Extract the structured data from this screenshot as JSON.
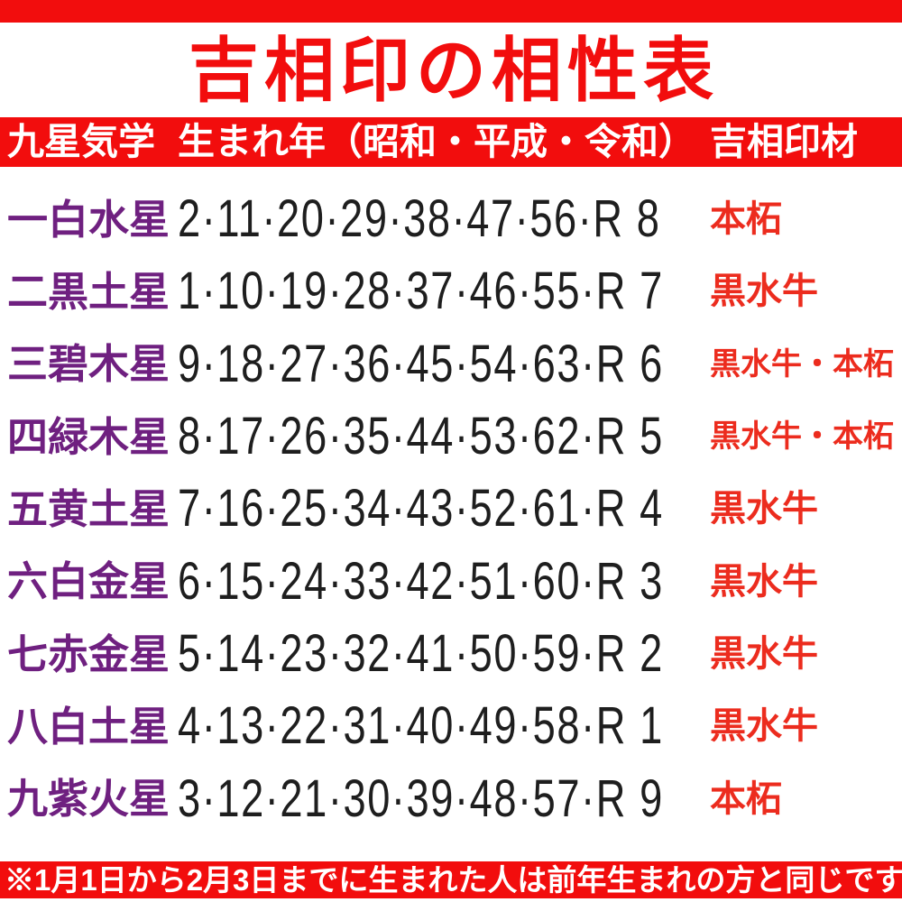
{
  "colors": {
    "band_red": "#f20d0d",
    "title_red": "#f20d0d",
    "star_purple": "#6f2080",
    "material_red": "#ec2c1e",
    "number_black": "#1e1e1e",
    "header_text_white": "#ffffff",
    "background": "#ffffff"
  },
  "chart_data": {
    "type": "table",
    "title": "吉相印の相性表",
    "columns": [
      "九星気学",
      "生まれ年（昭和・平成・令和）",
      "吉相印材"
    ],
    "rows": [
      {
        "star": "一白水星",
        "years": "2·11·20·29·38·47·56·R 8",
        "material": "本柘"
      },
      {
        "star": "二黒土星",
        "years": "1·10·19·28·37·46·55·R 7",
        "material": "黒水牛"
      },
      {
        "star": "三碧木星",
        "years": "9·18·27·36·45·54·63·R 6",
        "material": "黒水牛・本柘"
      },
      {
        "star": "四緑木星",
        "years": "8·17·26·35·44·53·62·R 5",
        "material": "黒水牛・本柘"
      },
      {
        "star": "五黄土星",
        "years": "7·16·25·34·43·52·61·R 4",
        "material": "黒水牛"
      },
      {
        "star": "六白金星",
        "years": "6·15·24·33·42·51·60·R 3",
        "material": "黒水牛"
      },
      {
        "star": "七赤金星",
        "years": "5·14·23·32·41·50·59·R 2",
        "material": "黒水牛"
      },
      {
        "star": "八白土星",
        "years": "4·13·22·31·40·49·58·R 1",
        "material": "黒水牛"
      },
      {
        "star": "九紫火星",
        "years": "3·12·21·30·39·48·57·R 9",
        "material": "本柘"
      }
    ],
    "footnote": "※1月1日から2月3日までに生まれた人は前年生まれの方と同じです"
  }
}
